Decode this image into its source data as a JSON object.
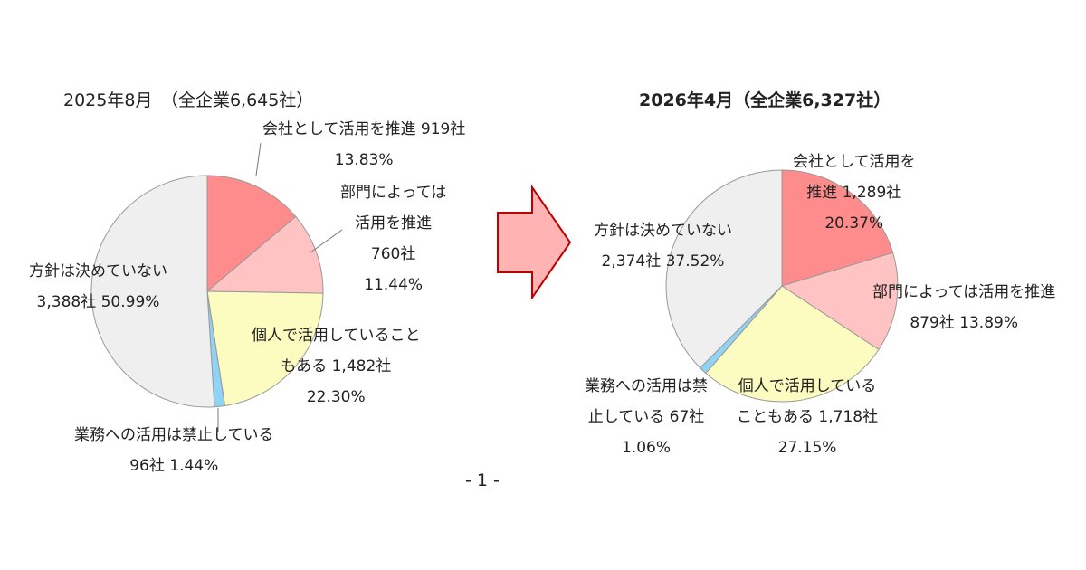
{
  "page": {
    "page_number": "- 1 -"
  },
  "chart_data": [
    {
      "type": "pie",
      "title": "2025年8月　（全企業6,645社）",
      "slices": [
        {
          "key": "promote_company",
          "label_lines": [
            "会社として活用を推進 919社",
            "13.83%"
          ],
          "companies": 919,
          "percent": 13.83,
          "color": "#FF8C8C"
        },
        {
          "key": "promote_dept",
          "label_lines": [
            "部門によっては",
            "活用を推進",
            "760社",
            "11.44%"
          ],
          "companies": 760,
          "percent": 11.44,
          "color": "#FFC3C3"
        },
        {
          "key": "individual",
          "label_lines": [
            "個人で活用していること",
            "もある 1,482社",
            "22.30%"
          ],
          "companies": 1482,
          "percent": 22.3,
          "color": "#FCFCC0"
        },
        {
          "key": "prohibited",
          "label_lines": [
            "業務への活用は禁止している",
            "96社 1.44%"
          ],
          "companies": 96,
          "percent": 1.44,
          "color": "#8FD3F5"
        },
        {
          "key": "undecided",
          "label_lines": [
            "方針は決めていない",
            "3,388社 50.99%"
          ],
          "companies": 3388,
          "percent": 50.99,
          "color": "#EFEFEF"
        }
      ]
    },
    {
      "type": "pie",
      "title": "2026年4月（全企業6,327社）",
      "slices": [
        {
          "key": "promote_company",
          "label_lines": [
            "会社として活用を",
            "推進 1,289社",
            "20.37%"
          ],
          "companies": 1289,
          "percent": 20.37,
          "color": "#FF8C8C"
        },
        {
          "key": "promote_dept",
          "label_lines": [
            "部門によっては活用を推進",
            "879社 13.89%"
          ],
          "companies": 879,
          "percent": 13.89,
          "color": "#FFC3C3"
        },
        {
          "key": "individual",
          "label_lines": [
            "個人で活用している",
            "こともある 1,718社",
            "27.15%"
          ],
          "companies": 1718,
          "percent": 27.15,
          "color": "#FCFCC0"
        },
        {
          "key": "prohibited",
          "label_lines": [
            "業務への活用は禁",
            "止している 67社",
            "1.06%"
          ],
          "companies": 67,
          "percent": 1.06,
          "color": "#8FD3F5"
        },
        {
          "key": "undecided",
          "label_lines": [
            "方針は決めていない",
            "2,374社 37.52%"
          ],
          "companies": 2374,
          "percent": 37.52,
          "color": "#EFEFEF"
        }
      ]
    }
  ],
  "colors": {
    "arrow_fill": "#FFB3B3",
    "arrow_stroke": "#C00000",
    "slice_border": "#999999"
  }
}
